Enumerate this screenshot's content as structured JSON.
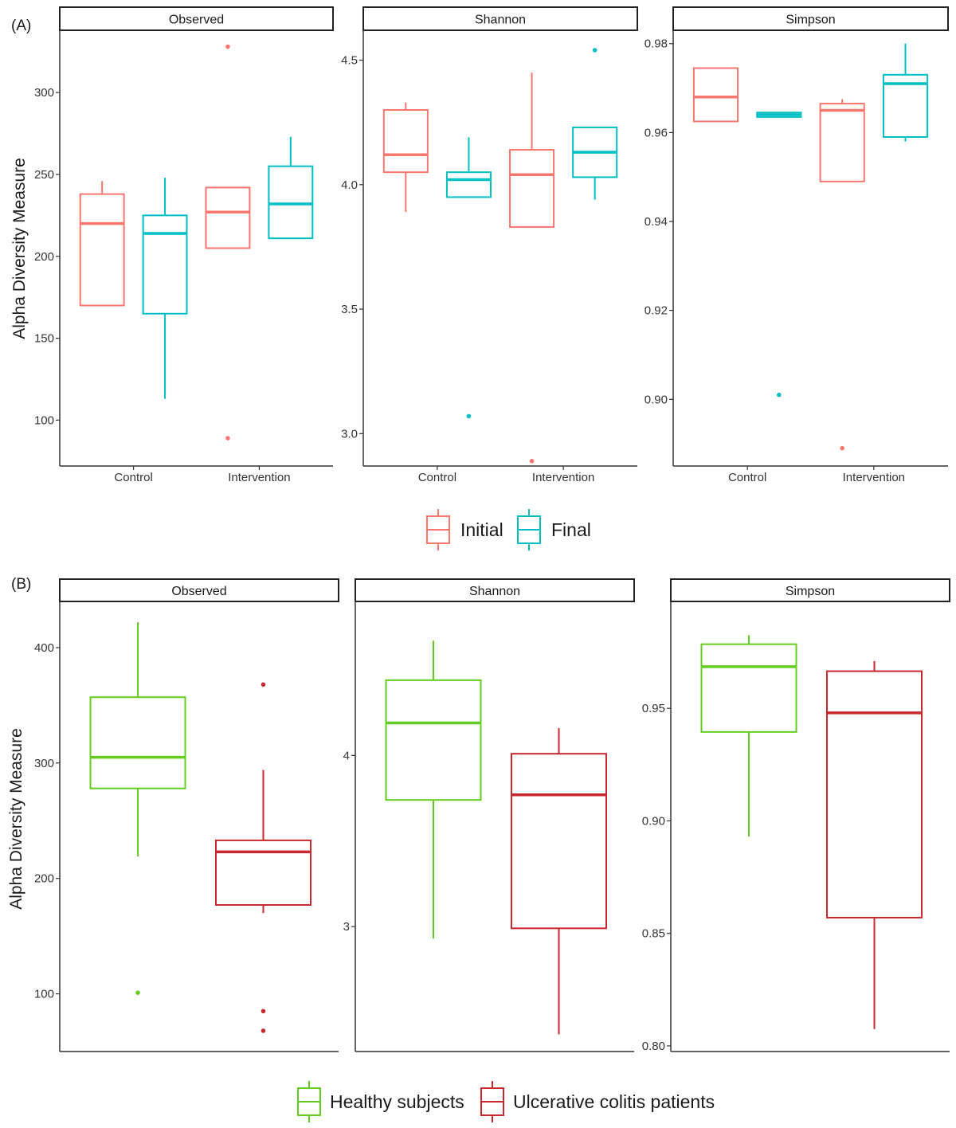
{
  "chart_data": [
    {
      "type": "boxplot",
      "panel_label": "(A)",
      "ylabel": "Alpha Diversity Measure",
      "categories": [
        "Control",
        "Intervention"
      ],
      "legend": [
        {
          "name": "Initial",
          "color": "#F8766D"
        },
        {
          "name": "Final",
          "color": "#00BFC4"
        }
      ],
      "legend_position": "bottom",
      "facets": [
        {
          "title": "Observed",
          "ylim": [
            72,
            338
          ],
          "yticks": [
            100,
            150,
            200,
            250,
            300
          ],
          "tick_labels": [
            "100",
            "150",
            "200",
            "250",
            "300"
          ],
          "groups": [
            {
              "category": "Control",
              "series": "Initial",
              "low": 170,
              "q1": 170,
              "median": 220,
              "q3": 238,
              "high": 246,
              "outliers": []
            },
            {
              "category": "Control",
              "series": "Final",
              "low": 113,
              "q1": 165,
              "median": 214,
              "q3": 225,
              "high": 248,
              "outliers": []
            },
            {
              "category": "Intervention",
              "series": "Initial",
              "low": 205,
              "q1": 205,
              "median": 227,
              "q3": 242,
              "high": 242,
              "outliers": [
                89,
                328
              ]
            },
            {
              "category": "Intervention",
              "series": "Final",
              "low": 211,
              "q1": 211,
              "median": 232,
              "q3": 255,
              "high": 273,
              "outliers": []
            }
          ]
        },
        {
          "title": "Shannon",
          "ylim": [
            2.87,
            4.62
          ],
          "yticks": [
            3.0,
            3.5,
            4.0,
            4.5
          ],
          "tick_labels": [
            "3.0",
            "3.5",
            "4.0",
            "4.5"
          ],
          "groups": [
            {
              "category": "Control",
              "series": "Initial",
              "low": 3.89,
              "q1": 4.05,
              "median": 4.12,
              "q3": 4.3,
              "high": 4.33,
              "outliers": []
            },
            {
              "category": "Control",
              "series": "Final",
              "low": 3.95,
              "q1": 3.95,
              "median": 4.02,
              "q3": 4.05,
              "high": 4.19,
              "outliers": [
                3.07
              ]
            },
            {
              "category": "Intervention",
              "series": "Initial",
              "low": 3.83,
              "q1": 3.83,
              "median": 4.04,
              "q3": 4.14,
              "high": 4.45,
              "outliers": [
                2.89
              ]
            },
            {
              "category": "Intervention",
              "series": "Final",
              "low": 3.94,
              "q1": 4.03,
              "median": 4.13,
              "q3": 4.23,
              "high": 4.23,
              "outliers": [
                4.54
              ]
            }
          ]
        },
        {
          "title": "Simpson",
          "ylim": [
            0.885,
            0.983
          ],
          "yticks": [
            0.9,
            0.92,
            0.94,
            0.96,
            0.98
          ],
          "tick_labels": [
            "0.90",
            "0.92",
            "0.94",
            "0.96",
            "0.98"
          ],
          "groups": [
            {
              "category": "Control",
              "series": "Initial",
              "low": 0.9625,
              "q1": 0.9625,
              "median": 0.968,
              "q3": 0.9745,
              "high": 0.9745,
              "outliers": []
            },
            {
              "category": "Control",
              "series": "Final",
              "low": 0.9635,
              "q1": 0.9635,
              "median": 0.964,
              "q3": 0.9645,
              "high": 0.9645,
              "outliers": [
                0.901
              ]
            },
            {
              "category": "Intervention",
              "series": "Initial",
              "low": 0.949,
              "q1": 0.949,
              "median": 0.965,
              "q3": 0.9665,
              "high": 0.9675,
              "outliers": [
                0.889
              ]
            },
            {
              "category": "Intervention",
              "series": "Final",
              "low": 0.958,
              "q1": 0.959,
              "median": 0.971,
              "q3": 0.973,
              "high": 0.98,
              "outliers": []
            }
          ]
        }
      ]
    },
    {
      "type": "boxplot",
      "panel_label": "(B)",
      "ylabel": "Alpha Diversity Measure",
      "categories": [],
      "legend": [
        {
          "name": "Healthy subjects",
          "color": "#64CC1E"
        },
        {
          "name": "Ulcerative colitis patients",
          "color": "#C8282D"
        }
      ],
      "legend_position": "bottom",
      "facets": [
        {
          "title": "Observed",
          "ylim": [
            50,
            440
          ],
          "yticks": [
            100,
            200,
            300,
            400
          ],
          "tick_labels": [
            "100",
            "200",
            "300",
            "400"
          ],
          "groups": [
            {
              "category": "",
              "series": "Healthy subjects",
              "low": 219,
              "q1": 278,
              "median": 305,
              "q3": 357,
              "high": 422,
              "outliers": [
                101
              ]
            },
            {
              "category": "",
              "series": "Ulcerative colitis patients",
              "low": 170,
              "q1": 177,
              "median": 223,
              "q3": 233,
              "high": 294,
              "outliers": [
                368,
                85,
                68
              ]
            }
          ]
        },
        {
          "title": "Shannon",
          "ylim": [
            2.27,
            4.9
          ],
          "yticks": [
            3,
            4
          ],
          "tick_labels": [
            "3",
            "4"
          ],
          "groups": [
            {
              "category": "",
              "series": "Healthy subjects",
              "low": 2.93,
              "q1": 3.74,
              "median": 4.19,
              "q3": 4.44,
              "high": 4.67,
              "outliers": []
            },
            {
              "category": "",
              "series": "Ulcerative colitis patients",
              "low": 2.37,
              "q1": 2.99,
              "median": 3.77,
              "q3": 4.01,
              "high": 4.16,
              "outliers": []
            }
          ]
        },
        {
          "title": "Simpson",
          "ylim": [
            0.7975,
            0.9975
          ],
          "yticks": [
            0.8,
            0.85,
            0.9,
            0.95
          ],
          "tick_labels": [
            "0.80",
            "0.85",
            "0.90",
            "0.95"
          ],
          "groups": [
            {
              "category": "",
              "series": "Healthy subjects",
              "low": 0.893,
              "q1": 0.9395,
              "median": 0.9685,
              "q3": 0.9785,
              "high": 0.9825,
              "outliers": []
            },
            {
              "category": "",
              "series": "Ulcerative colitis patients",
              "low": 0.8075,
              "q1": 0.857,
              "median": 0.948,
              "q3": 0.9665,
              "high": 0.971,
              "outliers": []
            }
          ]
        }
      ]
    }
  ]
}
